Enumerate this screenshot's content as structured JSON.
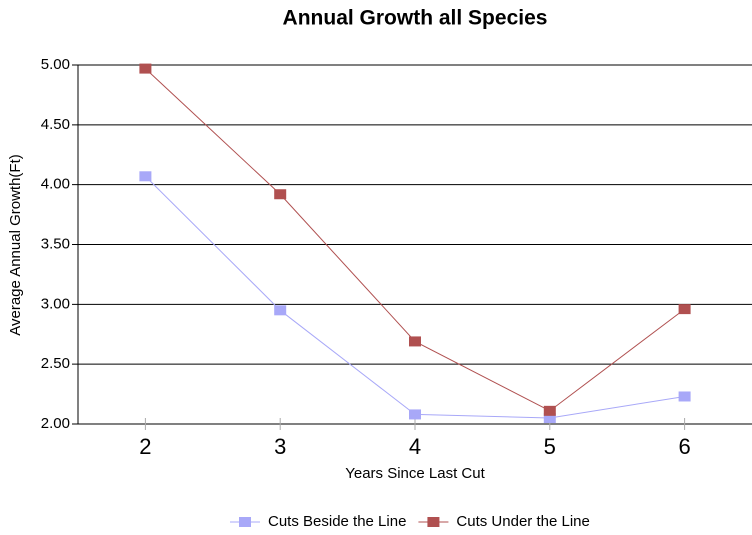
{
  "chart_data": {
    "type": "line",
    "title": "Annual Growth all Species",
    "x_label": "Years Since Last Cut",
    "y_label": "Average Annual Growth(Ft)",
    "categories": [
      "2",
      "3",
      "4",
      "5",
      "6"
    ],
    "series": [
      {
        "name": "Cuts Beside the Line",
        "color": "#a8a8f8",
        "values": [
          4.07,
          2.95,
          2.08,
          2.05,
          2.23
        ]
      },
      {
        "name": "Cuts Under the Line",
        "color": "#b05050",
        "values": [
          4.97,
          3.92,
          2.69,
          2.11,
          2.96
        ]
      }
    ],
    "ylim": [
      2,
      5
    ],
    "yticks": [
      {
        "value": 2,
        "label": "2.00"
      },
      {
        "value": 2.5,
        "label": "2.50"
      },
      {
        "value": 3,
        "label": "3.00"
      },
      {
        "value": 3.5,
        "label": "3.50"
      },
      {
        "value": 4,
        "label": "4.00"
      },
      {
        "value": 4.5,
        "label": "4.50"
      },
      {
        "value": 5,
        "label": "5.00"
      }
    ],
    "grid": true,
    "legend": "bottom"
  }
}
